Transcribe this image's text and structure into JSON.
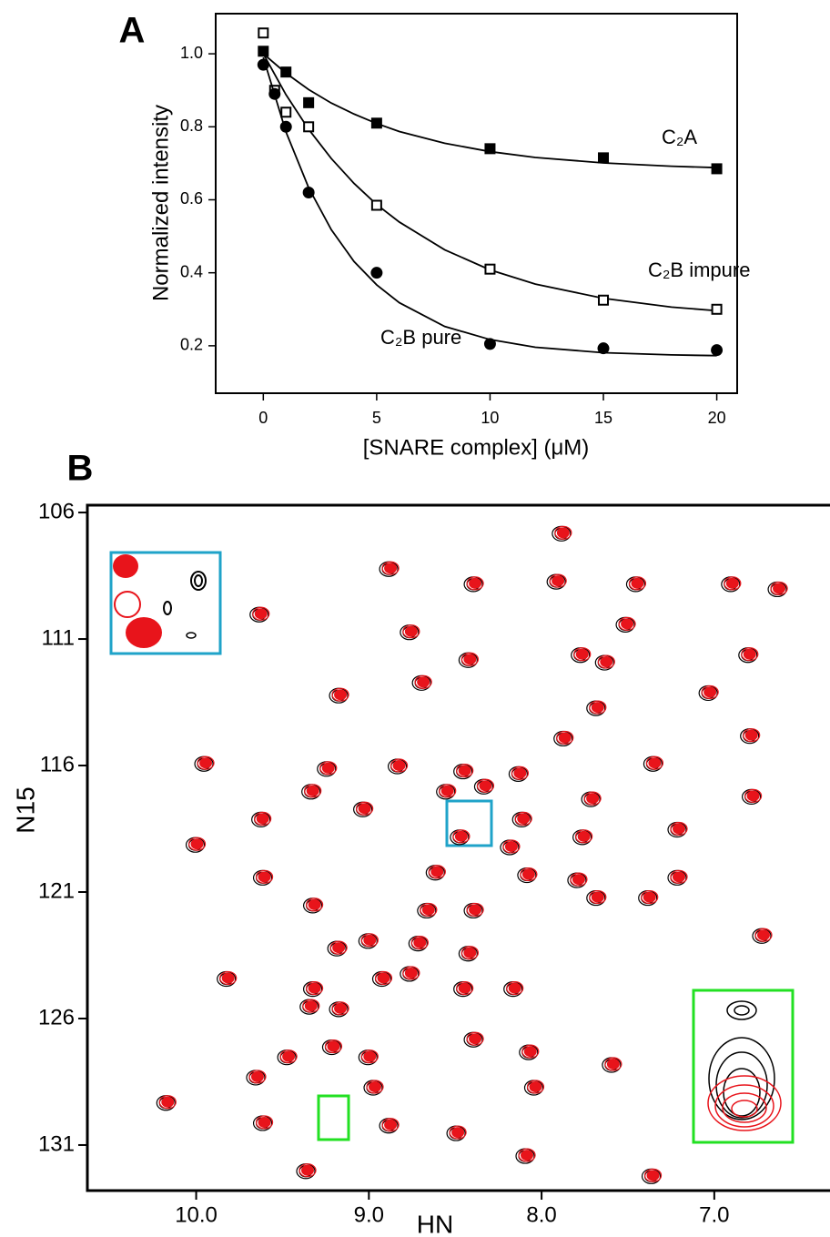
{
  "chart_data": [
    {
      "type": "scatter",
      "panel_label": "A",
      "xlabel": "[SNARE complex] (μM)",
      "ylabel": "Normalized intensity",
      "xlim": [
        -2.1,
        20.9
      ],
      "ylim": [
        0.07,
        1.11
      ],
      "xticks": [
        0,
        5,
        10,
        15,
        20
      ],
      "yticks": [
        0.2,
        0.4,
        0.6,
        0.8,
        {
          "value": 1,
          "label": "1.0"
        }
      ],
      "fit_x": [
        0,
        1,
        2,
        3,
        4,
        5,
        6,
        8,
        10,
        12,
        15,
        18,
        20
      ],
      "series": [
        {
          "name": "C₂A",
          "color": "#000000",
          "marker": "square",
          "filled": true,
          "x": [
            0,
            1,
            2,
            5,
            10,
            15,
            20
          ],
          "values": [
            1.007,
            0.95,
            0.866,
            0.81,
            0.74,
            0.715,
            0.685
          ],
          "fit": [
            1.0,
            0.947,
            0.902,
            0.865,
            0.835,
            0.809,
            0.787,
            0.755,
            0.732,
            0.716,
            0.701,
            0.692,
            0.688
          ]
        },
        {
          "name": "C₂B impure",
          "color": "#000000",
          "marker": "square",
          "filled": false,
          "x": [
            0,
            0.5,
            1,
            2,
            5,
            10,
            15,
            20
          ],
          "values": [
            1.057,
            0.9,
            0.84,
            0.8,
            0.585,
            0.41,
            0.325,
            0.3
          ],
          "fit": [
            1.0,
            0.888,
            0.793,
            0.713,
            0.645,
            0.587,
            0.539,
            0.463,
            0.408,
            0.369,
            0.33,
            0.306,
            0.296
          ]
        },
        {
          "name": "C₂B pure",
          "color": "#000000",
          "marker": "circle",
          "filled": true,
          "x": [
            0,
            0.5,
            1,
            2,
            5,
            10,
            15,
            20
          ],
          "values": [
            0.97,
            0.89,
            0.8,
            0.62,
            0.4,
            0.205,
            0.193,
            0.188
          ],
          "fit": [
            0.99,
            0.786,
            0.633,
            0.518,
            0.431,
            0.367,
            0.318,
            0.253,
            0.217,
            0.196,
            0.181,
            0.175,
            0.173
          ]
        }
      ]
    },
    {
      "type": "contour",
      "panel_label": "B",
      "xlabel": "HN",
      "ylabel": "N15",
      "xlim": [
        10.63,
        6.33
      ],
      "ylim": [
        132.8,
        105.71
      ],
      "xticks": [
        {
          "value": 10,
          "label": "10.0"
        },
        {
          "value": 9,
          "label": "9.0"
        },
        {
          "value": 8,
          "label": "8.0"
        },
        {
          "value": 7,
          "label": "7.0"
        }
      ],
      "yticks": [
        106,
        111,
        116,
        121,
        126,
        131
      ],
      "colors": [
        "#000000",
        "#e8141b"
      ],
      "peaks": {
        "x": [
          7.88,
          8.88,
          8.39,
          7.91,
          7.45,
          6.9,
          6.63,
          9.63,
          7.51,
          8.76,
          7.77,
          8.42,
          7.63,
          6.8,
          8.69,
          9.17,
          7.68,
          7.03,
          7.87,
          6.79,
          9.95,
          9.24,
          8.83,
          8.45,
          8.13,
          7.35,
          9.33,
          8.55,
          8.33,
          7.71,
          6.78,
          9.62,
          8.11,
          9.03,
          8.47,
          7.76,
          7.21,
          10.0,
          8.18,
          9.61,
          8.61,
          8.08,
          7.79,
          7.21,
          9.32,
          8.66,
          8.39,
          7.38,
          7.68,
          6.72,
          9.0,
          8.71,
          8.42,
          9.18,
          9.82,
          8.92,
          8.76,
          9.32,
          8.45,
          8.16,
          9.34,
          9.17,
          8.39,
          9.21,
          9.47,
          9.0,
          8.07,
          7.59,
          9.65,
          8.97,
          8.04,
          10.17,
          9.61,
          8.88,
          8.49,
          8.09,
          9.36,
          7.36
        ],
        "y": [
          106.8,
          108.2,
          108.8,
          108.7,
          108.8,
          108.8,
          109.0,
          110.0,
          110.4,
          110.7,
          111.6,
          111.8,
          111.9,
          111.6,
          112.7,
          113.2,
          113.7,
          113.1,
          114.9,
          114.8,
          115.9,
          116.1,
          116.0,
          116.2,
          116.3,
          115.9,
          117.0,
          117.0,
          116.8,
          117.3,
          117.2,
          118.1,
          118.1,
          117.7,
          118.8,
          118.8,
          118.5,
          119.1,
          119.2,
          120.4,
          120.2,
          120.3,
          120.5,
          120.4,
          121.5,
          121.7,
          121.7,
          121.2,
          121.2,
          122.7,
          122.9,
          123.0,
          123.4,
          123.2,
          124.4,
          124.4,
          124.2,
          124.8,
          124.8,
          124.8,
          125.5,
          125.6,
          126.8,
          127.1,
          127.5,
          127.5,
          127.3,
          127.8,
          128.3,
          128.7,
          128.7,
          129.3,
          130.1,
          130.2,
          130.5,
          131.4,
          132.0,
          132.2
        ]
      }
    }
  ]
}
